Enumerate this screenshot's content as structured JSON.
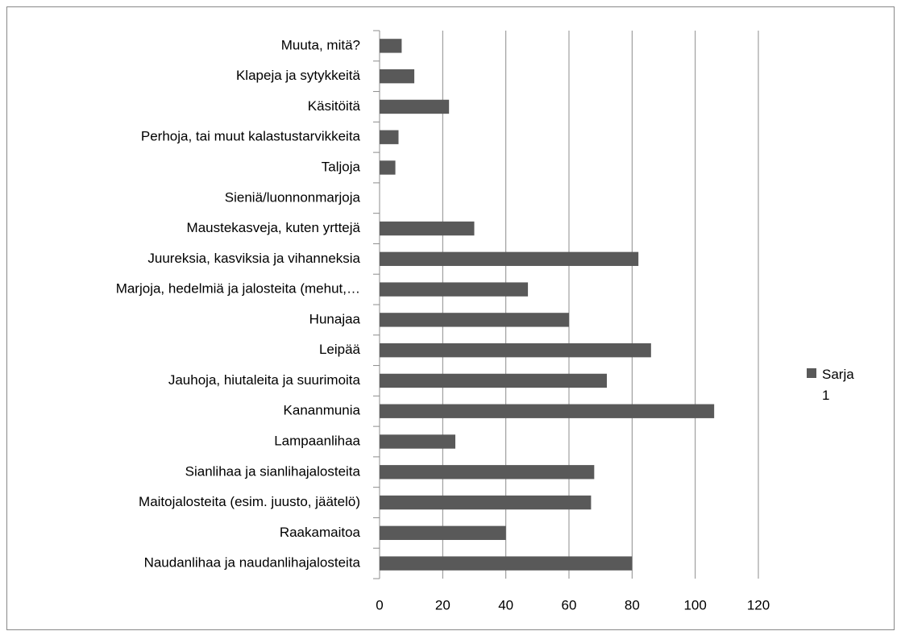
{
  "chart_data": {
    "type": "bar",
    "orientation": "horizontal",
    "categories": [
      "Naudanlihaa ja naudanlihajalosteita",
      "Raakamaitoa",
      "Maitojalosteita (esim. juusto, jäätelö)",
      "Sianlihaa ja sianlihajalosteita",
      "Lampaanlihaa",
      "Kananmunia",
      "Jauhoja, hiutaleita ja suurimoita",
      "Leipää",
      "Hunajaa",
      "Marjoja, hedelmiä ja jalosteita (mehut,…",
      "Juureksia, kasviksia ja vihanneksia",
      "Maustekasveja, kuten yrttejä",
      "Sieniä/luonnonmarjoja",
      "Taljoja",
      "Perhoja, tai muut kalastustarvikkeita",
      "Käsitöitä",
      "Klapeja ja sytykkeitä",
      "Muuta, mitä?"
    ],
    "series": [
      {
        "name": "Sarja 1",
        "color": "#595959",
        "values": [
          80,
          40,
          67,
          68,
          24,
          106,
          72,
          86,
          60,
          47,
          82,
          30,
          0,
          5,
          6,
          22,
          11,
          7
        ]
      }
    ],
    "xlim": [
      0,
      120
    ],
    "xticks": [
      0,
      20,
      40,
      60,
      80,
      100,
      120
    ],
    "grid": true,
    "legend": "right"
  }
}
